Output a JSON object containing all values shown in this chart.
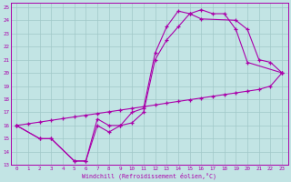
{
  "xlabel": "Windchill (Refroidissement éolien,°C)",
  "xlim": [
    -0.5,
    23.5
  ],
  "ylim": [
    13,
    25.3
  ],
  "xticks": [
    0,
    1,
    2,
    3,
    4,
    5,
    6,
    7,
    8,
    9,
    10,
    11,
    12,
    13,
    14,
    15,
    16,
    17,
    18,
    19,
    20,
    21,
    22,
    23
  ],
  "yticks": [
    13,
    14,
    15,
    16,
    17,
    18,
    19,
    20,
    21,
    22,
    23,
    24,
    25
  ],
  "bg_color": "#c2e4e4",
  "line_color": "#aa00aa",
  "grid_color": "#a0c8c8",
  "curve1_x": [
    0,
    1,
    2,
    3,
    4,
    5,
    6,
    7,
    8,
    9,
    10,
    11,
    12,
    13,
    14,
    15,
    16,
    17,
    18,
    19,
    20,
    21,
    22,
    23
  ],
  "curve1_y": [
    16,
    16.13,
    16.26,
    16.39,
    16.52,
    16.65,
    16.78,
    16.91,
    17.04,
    17.17,
    17.3,
    17.43,
    17.56,
    17.7,
    17.83,
    17.96,
    18.09,
    18.22,
    18.35,
    18.48,
    18.61,
    18.74,
    19.0,
    20.0
  ],
  "curve2_x": [
    0,
    2,
    3,
    5,
    6,
    7,
    8,
    9,
    10,
    11,
    12,
    13,
    14,
    15,
    16,
    19,
    20,
    21,
    22,
    23
  ],
  "curve2_y": [
    16,
    15,
    15,
    13.3,
    13.3,
    16.5,
    16,
    16,
    17,
    17.3,
    21.5,
    23.5,
    24.7,
    24.5,
    24.1,
    24.0,
    23.3,
    21.0,
    20.8,
    20.0
  ],
  "curve3_x": [
    0,
    2,
    3,
    5,
    6,
    7,
    8,
    9,
    10,
    11,
    12,
    13,
    14,
    15,
    16,
    17,
    18,
    19,
    20,
    23
  ],
  "curve3_y": [
    16,
    15,
    15,
    13.3,
    13.3,
    16.0,
    15.5,
    16.0,
    16.2,
    17.0,
    21.0,
    22.5,
    23.5,
    24.5,
    24.8,
    24.5,
    24.5,
    23.3,
    20.8,
    20.0
  ]
}
